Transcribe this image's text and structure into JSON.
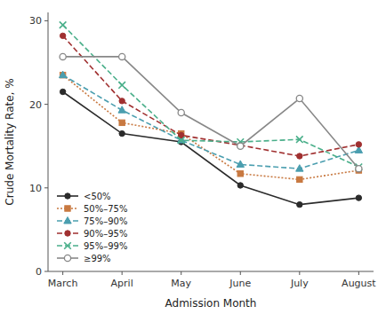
{
  "chart_data": {
    "type": "line",
    "xlabel": "Admission Month",
    "ylabel": "Crude Mortality Rate, %",
    "categories": [
      "March",
      "April",
      "May",
      "June",
      "July",
      "August"
    ],
    "series": [
      {
        "name": "<50%",
        "color": "#2b2b2b",
        "line_style": "solid",
        "marker": "circle",
        "values": [
          21.5,
          16.5,
          15.5,
          10.3,
          8.0,
          8.8
        ]
      },
      {
        "name": "50%–75%",
        "color": "#c87941",
        "line_style": "dotted",
        "marker": "square",
        "values": [
          23.5,
          17.8,
          16.5,
          11.7,
          11.0,
          12.1
        ]
      },
      {
        "name": "75%–90%",
        "color": "#4a9eaf",
        "line_style": "dashed",
        "marker": "triangle",
        "values": [
          23.5,
          19.3,
          15.7,
          12.8,
          12.3,
          14.5
        ]
      },
      {
        "name": "90%–95%",
        "color": "#a03030",
        "line_style": "dashed",
        "marker": "circle",
        "values": [
          28.2,
          20.4,
          16.3,
          15.1,
          13.8,
          15.2
        ]
      },
      {
        "name": "95%–99%",
        "color": "#4aaf8a",
        "line_style": "dashed",
        "marker": "x",
        "values": [
          29.5,
          22.3,
          15.7,
          15.5,
          15.8,
          12.5
        ]
      },
      {
        "name": "≥99%",
        "color": "#888888",
        "line_style": "solid",
        "marker": "open-circle",
        "values": [
          25.7,
          25.7,
          19.0,
          15.0,
          20.7,
          12.3
        ]
      }
    ],
    "ylim": [
      0,
      31
    ],
    "yticks": [
      0,
      10,
      20,
      30
    ],
    "grid": false,
    "legend": "lower left"
  }
}
